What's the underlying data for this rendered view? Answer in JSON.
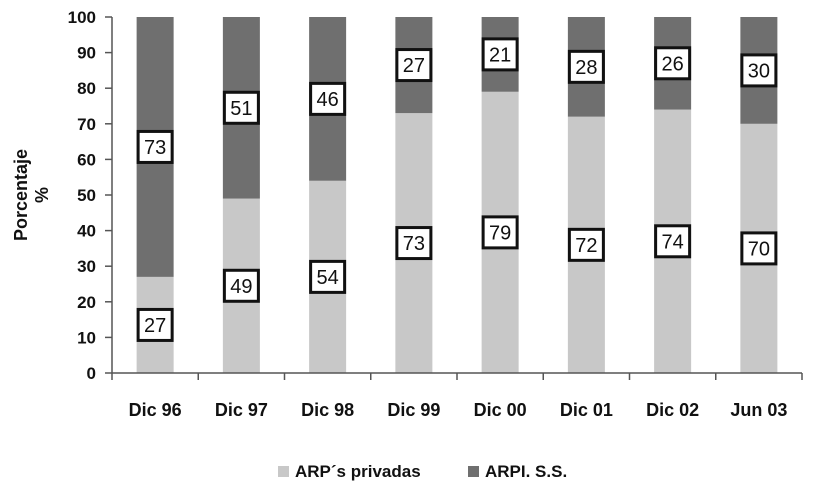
{
  "chart_data": {
    "type": "bar",
    "stacked": true,
    "categories": [
      "Dic 96",
      "Dic 97",
      "Dic 98",
      "Dic 99",
      "Dic 00",
      "Dic 01",
      "Dic 02",
      "Jun 03"
    ],
    "series": [
      {
        "name": "ARP´s privadas",
        "values": [
          27,
          49,
          54,
          73,
          79,
          72,
          74,
          70
        ],
        "color": "#c8c8c8"
      },
      {
        "name": "ARPI. S.S.",
        "values": [
          73,
          51,
          46,
          27,
          21,
          28,
          26,
          30
        ],
        "color": "#6f6f6f"
      }
    ],
    "ylabel_line1": "Porcentaje",
    "ylabel_line2": "%",
    "ylim": [
      0,
      100
    ],
    "yticks": [
      0,
      10,
      20,
      30,
      40,
      50,
      60,
      70,
      80,
      90,
      100
    ],
    "grid": false,
    "legend_position": "bottom",
    "data_labels": true
  }
}
